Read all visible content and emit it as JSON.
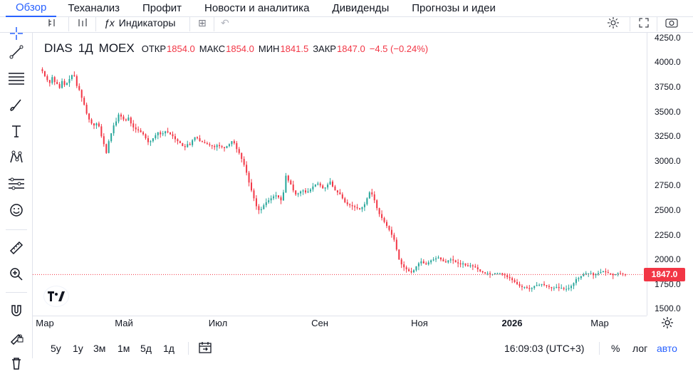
{
  "nav": {
    "tabs": [
      "Обзор",
      "Теханализ",
      "Профит",
      "Новости и аналитика",
      "Дивиденды",
      "Прогнозы и идеи"
    ],
    "active_index": 0
  },
  "toolbar": {
    "indicators_label": "Индикаторы"
  },
  "legend": {
    "symbol": "DIAS",
    "interval": "1Д",
    "exchange": "MOEX",
    "open_label": "ОТКР",
    "open_value": "1854.0",
    "high_label": "МАКС",
    "high_value": "1854.0",
    "low_label": "МИН",
    "low_value": "1841.5",
    "close_label": "ЗАКР",
    "close_value": "1847.0",
    "change": "−4.5 (−0.24%)"
  },
  "price_axis": {
    "ticks": [
      "4250.0",
      "4000.0",
      "3750.0",
      "3500.0",
      "3250.0",
      "3000.0",
      "2750.0",
      "2500.0",
      "2250.0",
      "2000.0",
      "1750.0",
      "1500.0"
    ],
    "last_price": "1847.0"
  },
  "time_axis": {
    "ticks": [
      "Мар",
      "Май",
      "Июл",
      "Сен",
      "Ноя",
      "2026",
      "Мар"
    ]
  },
  "bottom": {
    "ranges": [
      "5y",
      "1y",
      "3м",
      "1м",
      "5д",
      "1д"
    ],
    "clock": "16:09:03 (UTC+3)",
    "percent": "%",
    "log": "лог",
    "auto": "авто"
  },
  "colors": {
    "up": "#26a69a",
    "down": "#f23645",
    "accent": "#2962ff"
  },
  "chart_data": {
    "type": "candlestick",
    "series": [
      {
        "values": [
          3930,
          3910,
          3860,
          3820,
          3790,
          3850,
          3800,
          3780,
          3740,
          3810,
          3770,
          3790,
          3830,
          3870,
          3860,
          3760,
          3720,
          3640,
          3570,
          3480,
          3420,
          3380,
          3360,
          3380,
          3350,
          3250,
          3170,
          3080,
          3200,
          3280,
          3360,
          3400,
          3470,
          3450,
          3420,
          3410,
          3440,
          3380,
          3340,
          3320,
          3310,
          3290,
          3270,
          3230,
          3190,
          3200,
          3230,
          3260,
          3290,
          3270,
          3280,
          3300,
          3290,
          3270,
          3250,
          3220,
          3200,
          3180,
          3150,
          3140,
          3170,
          3160,
          3210,
          3240,
          3230,
          3200,
          3190,
          3180,
          3170,
          3160,
          3150,
          3140,
          3160,
          3150,
          3140,
          3130,
          3150,
          3170,
          3200,
          3180,
          3120,
          3080,
          3020,
          2960,
          2880,
          2780,
          2700,
          2620,
          2540,
          2500,
          2510,
          2550,
          2580,
          2600,
          2620,
          2640,
          2650,
          2630,
          2600,
          2680,
          2850,
          2800,
          2760,
          2700,
          2660,
          2670,
          2690,
          2700,
          2680,
          2690,
          2710,
          2740,
          2760,
          2770,
          2750,
          2720,
          2730,
          2760,
          2790,
          2740,
          2700,
          2680,
          2660,
          2620,
          2580,
          2560,
          2550,
          2540,
          2530,
          2520,
          2510,
          2530,
          2560,
          2620,
          2680,
          2660,
          2600,
          2520,
          2460,
          2420,
          2380,
          2340,
          2300,
          2250,
          2200,
          2100,
          2000,
          1950,
          1920,
          1900,
          1880,
          1870,
          1890,
          1930,
          1960,
          1980,
          1960,
          1950,
          1970,
          1990,
          2000,
          2010,
          2020,
          2000,
          1980,
          1970,
          1990,
          2000,
          1990,
          1970,
          1960,
          1950,
          1960,
          1940,
          1930,
          1940,
          1930,
          1920,
          1900,
          1880,
          1870,
          1860,
          1860,
          1850,
          1850,
          1860,
          1860,
          1860,
          1850,
          1840,
          1820,
          1810,
          1790,
          1770,
          1750,
          1730,
          1720,
          1720,
          1710,
          1700,
          1710,
          1730,
          1740,
          1740,
          1750,
          1740,
          1730,
          1720,
          1710,
          1710,
          1720,
          1710,
          1710,
          1700,
          1700,
          1710,
          1730,
          1760,
          1800,
          1810,
          1830,
          1850,
          1860,
          1860,
          1860,
          1840,
          1850,
          1860,
          1870,
          1880,
          1870,
          1860,
          1850,
          1840,
          1850,
          1860,
          1855,
          1850,
          1847
        ]
      }
    ],
    "y_range": [
      1430,
      4300
    ],
    "x_labels": [
      "Мар",
      "Май",
      "Июл",
      "Сен",
      "Ноя",
      "2026",
      "Мар"
    ],
    "last_value": 1847.0
  }
}
